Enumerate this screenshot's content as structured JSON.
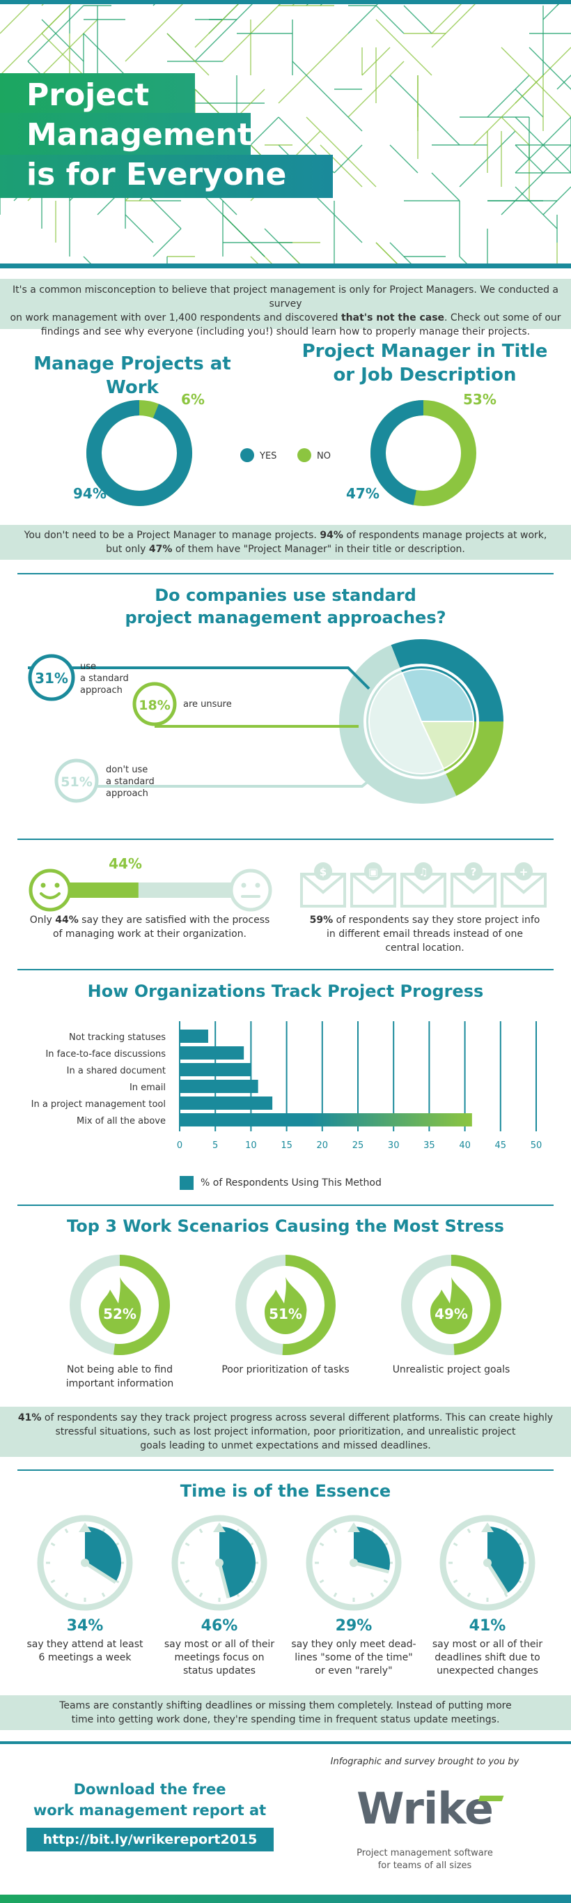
{
  "header": {
    "title_lines": [
      "Project",
      "Management",
      "is for Everyone"
    ]
  },
  "intro": {
    "line1": "It's a common misconception to believe that project management is only for Project Managers. We conducted a survey",
    "line2a": "on work management with over 1,400 respondents and discovered ",
    "line2b": "that's not the case",
    "line2c": ". Check out some of our",
    "line3": "findings and see why everyone (including you!) should learn how to properly manage their projects."
  },
  "manage": {
    "title": "Manage Projects at Work",
    "yes_pct": 94,
    "no_pct": 6,
    "yes_label": "94%",
    "no_label": "6%"
  },
  "pm_title": {
    "title_line1": "Project Manager in Title",
    "title_line2": "or Job Description",
    "yes_pct": 47,
    "no_pct": 53,
    "yes_label": "47%",
    "no_label": "53%"
  },
  "legend": {
    "yes": "YES",
    "no": "NO"
  },
  "band2": {
    "line1a": "You don't need to be a Project Manager to manage projects. ",
    "line1b": "94%",
    "line1c": " of respondents manage projects at work,",
    "line2a": "but only ",
    "line2b": "47%",
    "line2c": " of them have \"Project Manager\" in their title or description."
  },
  "approach": {
    "title_line1": "Do companies use standard",
    "title_line2": "project management approaches?",
    "use_pct": 31,
    "unsure_pct": 18,
    "dont_pct": 51,
    "use_label": "31%",
    "use_text": [
      "use",
      "a standard",
      "approach"
    ],
    "unsure_label": "18%",
    "unsure_text": "are unsure",
    "dont_label": "51%",
    "dont_text": [
      "don't use",
      "a standard",
      "approach"
    ]
  },
  "satisfied": {
    "pct": 44,
    "label": "44%",
    "text1a": "Only ",
    "text1b": "44%",
    "text1c": " say they are satisfied with the process",
    "text2": "of managing work at their organization."
  },
  "email": {
    "envelope_icons": [
      "dollar-icon",
      "image-icon",
      "music-icon",
      "question-icon",
      "plus-icon"
    ],
    "text1a": "59%",
    "text1b": " of respondents say they store project info",
    "text2": "in different email threads instead of one",
    "text3": "central location."
  },
  "tracking": {
    "title": "How Organizations Track Project Progress",
    "legend": "% of Respondents Using This Method"
  },
  "chart_data": {
    "type": "bar",
    "orientation": "horizontal",
    "title": "How Organizations Track Project Progress",
    "categories": [
      "Not tracking statuses",
      "In face-to-face discussions",
      "In a shared document",
      "In email",
      "In a project management tool",
      "Mix of all the above"
    ],
    "values": [
      4,
      9,
      10,
      11,
      13,
      41
    ],
    "xlim": [
      0,
      50
    ],
    "xticks": [
      0,
      5,
      10,
      15,
      20,
      25,
      30,
      35,
      40,
      45,
      50
    ],
    "series_name": "% of Respondents Using This Method",
    "grid": true,
    "colors": {
      "bar": "#1a8a9b",
      "highlight_end": "#8cc540"
    }
  },
  "stress": {
    "title": "Top 3 Work Scenarios Causing the Most Stress",
    "items": [
      {
        "pct": 52,
        "label": "52%",
        "text": [
          "Not being able to find",
          "important information"
        ]
      },
      {
        "pct": 51,
        "label": "51%",
        "text": [
          "Poor prioritization of tasks"
        ]
      },
      {
        "pct": 49,
        "label": "49%",
        "text": [
          "Unrealistic project goals"
        ]
      }
    ]
  },
  "band3": {
    "line1a": "41%",
    "line1b": " of respondents say they track project progress across several different platforms. This can create highly",
    "line2": "stressful situations, such as lost project information, poor prioritization, and unrealistic project",
    "line3": "goals leading to unmet expectations and missed deadlines."
  },
  "time": {
    "title": "Time is of the Essence",
    "items": [
      {
        "pct": 34,
        "label": "34%",
        "text": [
          "say they attend at least",
          "6 meetings a week"
        ]
      },
      {
        "pct": 46,
        "label": "46%",
        "text": [
          "say most or all of their",
          "meetings focus on",
          "status updates"
        ]
      },
      {
        "pct": 29,
        "label": "29%",
        "text": [
          "say they only meet dead-",
          "lines \"some of the time\"",
          "or even \"rarely\""
        ]
      },
      {
        "pct": 41,
        "label": "41%",
        "text": [
          "say most or all of their",
          "deadlines shift due to",
          "unexpected changes"
        ]
      }
    ]
  },
  "band4": {
    "line1": "Teams are constantly shifting deadlines or missing them completely. Instead of putting more",
    "line2": "time into getting work done, they're spending time in frequent status update meetings."
  },
  "footer": {
    "download_line1": "Download the free",
    "download_line2": "work management report at",
    "url": "http://bit.ly/wrikereport2015",
    "brought_by": "Infographic and survey brought to you by",
    "logo": "Wrike",
    "tagline1": "Project management software",
    "tagline2": "for teams of all sizes"
  },
  "colors": {
    "teal": "#1a8a9b",
    "green": "#8cc540",
    "light": "#cfe6dc",
    "pale": "#bfe0d8"
  }
}
